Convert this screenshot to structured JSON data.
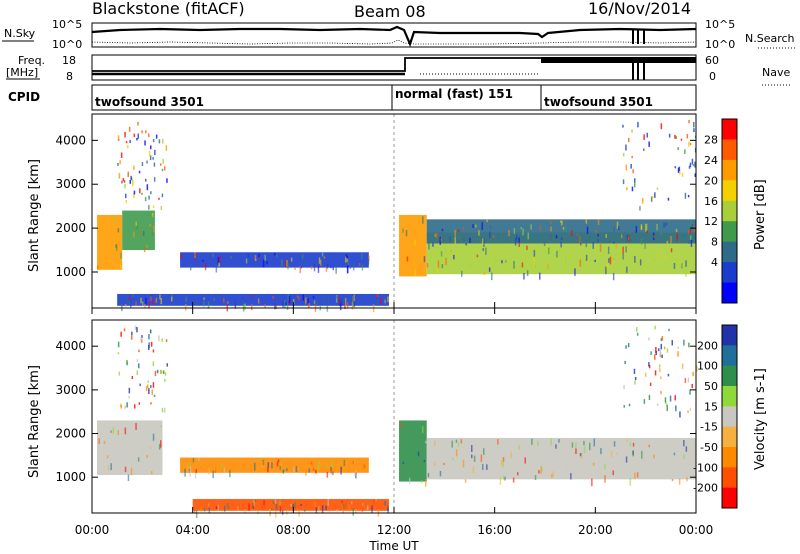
{
  "header": {
    "title": "Blackstone (fitACF)",
    "beam": "Beam 08",
    "date": "16/Nov/2014"
  },
  "noise_panel": {
    "left_label": "N.Sky",
    "left_ticks": [
      "10^5",
      "10^0"
    ],
    "right_ticks": [
      "10^5",
      "10^0"
    ],
    "right_label": "N.Search"
  },
  "freq_panel": {
    "left_label_1": "Freq.",
    "left_label_2": "[MHz]",
    "left_ticks": [
      "18",
      "8"
    ],
    "right_ticks": [
      "60",
      "0"
    ],
    "right_label": "Nave"
  },
  "cpid": {
    "label": "CPID",
    "segments": [
      {
        "name": "twofsound 3501",
        "start_hour": 0
      },
      {
        "name": "normal (fast) 151",
        "start_hour": 12.0
      },
      {
        "name": "twofsound 3501",
        "start_hour": 18.0
      }
    ]
  },
  "chart_data": [
    {
      "type": "heatmap",
      "title": "",
      "ylabel": "Slant Range [km]",
      "xlabel": "",
      "ylim": [
        180,
        4600
      ],
      "xlim": [
        0,
        24
      ],
      "yticks": [
        "1000",
        "2000",
        "3000",
        "4000"
      ],
      "colorbar": {
        "label": "Power [dB]",
        "ticks": [
          "28",
          "24",
          "20",
          "16",
          "12",
          "8",
          "4"
        ],
        "colors": [
          "#ff0000",
          "#ff5a00",
          "#ff9b00",
          "#f5d000",
          "#a8cf3a",
          "#3f9a4c",
          "#2e6a8a",
          "#1a3ccc",
          "#0000ff"
        ]
      },
      "echo_bands": [
        {
          "start_hour": 0.2,
          "end_hour": 1.2,
          "range_low_km": 1050,
          "range_high_km": 2300,
          "value_db": 24
        },
        {
          "start_hour": 1.2,
          "end_hour": 2.5,
          "range_low_km": 1500,
          "range_high_km": 2400,
          "value_db": 12
        },
        {
          "start_hour": 3.5,
          "end_hour": 11.0,
          "range_low_km": 1100,
          "range_high_km": 1450,
          "value_db": 6
        },
        {
          "start_hour": 1.0,
          "end_hour": 11.8,
          "range_low_km": 230,
          "range_high_km": 500,
          "value_db": 4
        },
        {
          "start_hour": 12.2,
          "end_hour": 13.3,
          "range_low_km": 900,
          "range_high_km": 2300,
          "value_db": 24
        },
        {
          "start_hour": 13.3,
          "end_hour": 24.0,
          "range_low_km": 950,
          "range_high_km": 1900,
          "value_db": 18
        },
        {
          "start_hour": 13.3,
          "end_hour": 24.0,
          "range_low_km": 1650,
          "range_high_km": 2200,
          "value_db": 8
        }
      ]
    },
    {
      "type": "heatmap",
      "title": "",
      "ylabel": "Slant Range [km]",
      "xlabel": "Time UT",
      "ylim": [
        180,
        4600
      ],
      "xlim": [
        0,
        24
      ],
      "yticks": [
        "1000",
        "2000",
        "3000",
        "4000"
      ],
      "xticks": [
        "00:00",
        "04:00",
        "08:00",
        "12:00",
        "16:00",
        "20:00",
        "00:00"
      ],
      "colorbar": {
        "label": "Velocity [m s-1]",
        "ticks": [
          "200",
          "100",
          "50",
          "15",
          "-15",
          "-50",
          "-100",
          "-200"
        ],
        "colors": [
          "#2233aa",
          "#1f6f9a",
          "#2f8f4a",
          "#8fd83a",
          "#c8c8c0",
          "#f5b040",
          "#ff8a00",
          "#ff5000",
          "#ff0000"
        ]
      },
      "echo_bands": [
        {
          "start_hour": 0.2,
          "end_hour": 2.8,
          "range_low_km": 1050,
          "range_high_km": 2300,
          "value_ms": 0
        },
        {
          "start_hour": 3.5,
          "end_hour": 11.0,
          "range_low_km": 1100,
          "range_high_km": 1450,
          "value_ms": -80
        },
        {
          "start_hour": 4.0,
          "end_hour": 11.8,
          "range_low_km": 230,
          "range_high_km": 500,
          "value_ms": -100
        },
        {
          "start_hour": 12.2,
          "end_hour": 13.3,
          "range_low_km": 900,
          "range_high_km": 2300,
          "value_ms": 60
        },
        {
          "start_hour": 13.3,
          "end_hour": 24.0,
          "range_low_km": 950,
          "range_high_km": 1900,
          "value_ms": 0
        }
      ]
    }
  ]
}
